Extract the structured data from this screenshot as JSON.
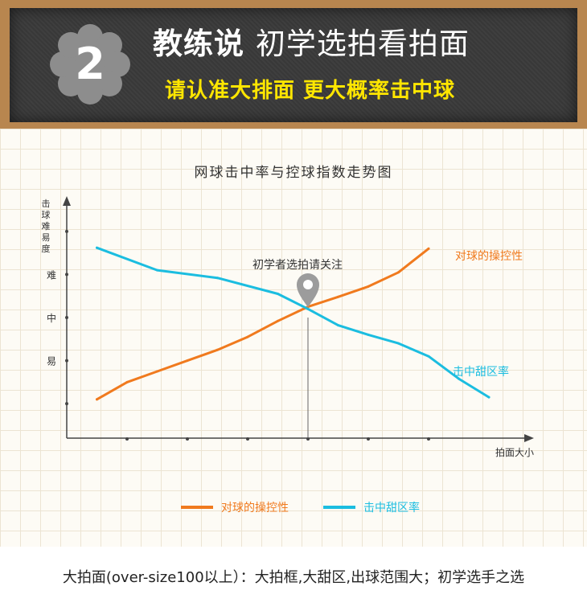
{
  "header": {
    "badge_number": "2",
    "title_bold": "教练说",
    "title_rest": "初学选拍看拍面",
    "subtitle": "请认准大排面 更大概率击中球"
  },
  "chart_data": {
    "type": "line",
    "title": "网球击中率与控球指数走势图",
    "xlabel": "拍面大小",
    "ylabel": "击球难易度",
    "ytick_labels": [
      "难",
      "中",
      "易"
    ],
    "x_tick_count": 6,
    "series": [
      {
        "name": "对球的操控性",
        "color": "#f07a1e",
        "points": [
          [
            1,
            0.1
          ],
          [
            2,
            0.5
          ],
          [
            3,
            0.75
          ],
          [
            4,
            1.0
          ],
          [
            5,
            1.25
          ],
          [
            6,
            1.55
          ],
          [
            7,
            1.92
          ],
          [
            8,
            2.25
          ],
          [
            9,
            2.48
          ],
          [
            10,
            2.72
          ],
          [
            11,
            3.05
          ],
          [
            12,
            3.6
          ]
        ]
      },
      {
        "name": "击中甜区率",
        "color": "#1bbde0",
        "points": [
          [
            1,
            3.62
          ],
          [
            3,
            3.1
          ],
          [
            5,
            2.92
          ],
          [
            7,
            2.55
          ],
          [
            8,
            2.2
          ],
          [
            9,
            1.82
          ],
          [
            10,
            1.6
          ],
          [
            11,
            1.4
          ],
          [
            12,
            1.1
          ],
          [
            13,
            0.58
          ],
          [
            14,
            0.15
          ]
        ]
      }
    ],
    "xlim": [
      0,
      16
    ],
    "ylim": [
      -0.8,
      4.8
    ],
    "annotation": {
      "text": "初学者选拍请关注",
      "x": 8,
      "y": 2.0
    },
    "legend_position": "bottom-center",
    "grid": true
  },
  "caption": "大拍面(over-size100以上）：大拍框,大甜区,出球范围大；初学选手之选"
}
